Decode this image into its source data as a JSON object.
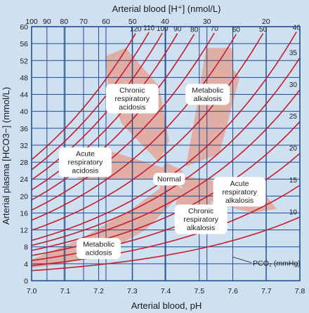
{
  "chart_data": {
    "type": "line",
    "xlabel": "Arterial blood, pH",
    "ylabel": "Arterial plasma [HCO3−] (mmol/L)",
    "top_axis_label": "Arterial blood [H⁺] (nmol/L)",
    "xlim": [
      7.0,
      7.8
    ],
    "ylim": [
      0,
      60
    ],
    "x_ticks": [
      "7.0",
      "7.1",
      "7.2",
      "7.3",
      "7.4",
      "7.5",
      "7.6",
      "7.7",
      "7.8"
    ],
    "y_ticks": [
      "0",
      "4",
      "8",
      "12",
      "16",
      "20",
      "24",
      "28",
      "32",
      "36",
      "40",
      "44",
      "48",
      "52",
      "56",
      "60"
    ],
    "top_ticks": [
      {
        "label": "100",
        "h": 100
      },
      {
        "label": "90",
        "h": 90
      },
      {
        "label": "80",
        "h": 80
      },
      {
        "label": "70",
        "h": 70
      },
      {
        "label": "60",
        "h": 60
      },
      {
        "label": "50",
        "h": 50
      },
      {
        "label": "40",
        "h": 40
      },
      {
        "label": "30",
        "h": 30
      },
      {
        "label": "20",
        "h": 20
      }
    ],
    "grid": true,
    "pco2_isobars_mmHg": [
      {
        "label": "10",
        "pco2": 10
      },
      {
        "label": "15",
        "pco2": 15
      },
      {
        "label": "20",
        "pco2": 20
      },
      {
        "label": "25",
        "pco2": 25
      },
      {
        "label": "30",
        "pco2": 30
      },
      {
        "label": "35",
        "pco2": 35
      },
      {
        "label": "40",
        "pco2": 40
      },
      {
        "label": "50",
        "pco2": 50
      },
      {
        "label": "60",
        "pco2": 60
      },
      {
        "label": "70",
        "pco2": 70
      },
      {
        "label": "80",
        "pco2": 80
      },
      {
        "label": "90",
        "pco2": 90
      },
      {
        "label": "100",
        "pco2": 100
      },
      {
        "label": "110",
        "pco2": 110
      },
      {
        "label": "120",
        "pco2": 120
      }
    ],
    "isobar_legend": "PCO₂ (mmHg)",
    "regions": [
      {
        "label": "Chronic\nrespiratory\nacidosis",
        "label_at": [
          7.3,
          43
        ],
        "polygon": [
          [
            7.22,
            53
          ],
          [
            7.28,
            55
          ],
          [
            7.38,
            46
          ],
          [
            7.41,
            33
          ],
          [
            7.38,
            28
          ],
          [
            7.33,
            32
          ],
          [
            7.27,
            37
          ],
          [
            7.23,
            44
          ]
        ]
      },
      {
        "label": "Metabolic\nalkalosis",
        "label_at": [
          7.525,
          44
        ],
        "polygon": [
          [
            7.52,
            55
          ],
          [
            7.6,
            55
          ],
          [
            7.6,
            50
          ],
          [
            7.62,
            48
          ],
          [
            7.56,
            30
          ],
          [
            7.46,
            27
          ],
          [
            7.49,
            40
          ]
        ]
      },
      {
        "label": "Acute\nrespiratory\nacidosis",
        "label_at": [
          7.16,
          28
        ],
        "polygon": [
          [
            7.11,
            27
          ],
          [
            7.12,
            30
          ],
          [
            7.22,
            31
          ],
          [
            7.34,
            28
          ],
          [
            7.42,
            26
          ],
          [
            7.4,
            24
          ],
          [
            7.26,
            24
          ],
          [
            7.14,
            24
          ]
        ]
      },
      {
        "label": "Normal",
        "label_at": [
          7.41,
          24
        ],
        "polygon": [
          [
            7.37,
            24
          ],
          [
            7.4,
            28
          ],
          [
            7.45,
            26
          ],
          [
            7.44,
            21
          ],
          [
            7.39,
            21
          ]
        ]
      },
      {
        "label": "Acute\nrespiratory\nalkalosis",
        "label_at": [
          7.62,
          21
        ],
        "polygon": [
          [
            7.42,
            25
          ],
          [
            7.52,
            24
          ],
          [
            7.62,
            22
          ],
          [
            7.7,
            20
          ],
          [
            7.73,
            17
          ],
          [
            7.66,
            16
          ],
          [
            7.56,
            18
          ],
          [
            7.46,
            21
          ]
        ]
      },
      {
        "label": "Chronic\nrespiratory\nalkalosis",
        "label_at": [
          7.505,
          14.5
        ],
        "polygon": [
          [
            7.44,
            22
          ],
          [
            7.52,
            21
          ],
          [
            7.55,
            16
          ],
          [
            7.54,
            12
          ],
          [
            7.5,
            11
          ],
          [
            7.47,
            14
          ],
          [
            7.43,
            18
          ]
        ]
      },
      {
        "label": "Metabolic\nacidosis",
        "label_at": [
          7.2,
          7.6
        ],
        "polygon": [
          [
            7.0,
            3
          ],
          [
            7.0,
            5
          ],
          [
            7.15,
            10
          ],
          [
            7.3,
            17
          ],
          [
            7.42,
            24
          ],
          [
            7.44,
            20
          ],
          [
            7.34,
            12
          ],
          [
            7.25,
            8
          ],
          [
            7.1,
            4
          ]
        ]
      }
    ],
    "colors": {
      "background": "#cfe0f1",
      "grid": "#1f4e96",
      "isobar": "#c41e2c",
      "region": "#e0aea4",
      "label_box": "#ffffff"
    }
  }
}
